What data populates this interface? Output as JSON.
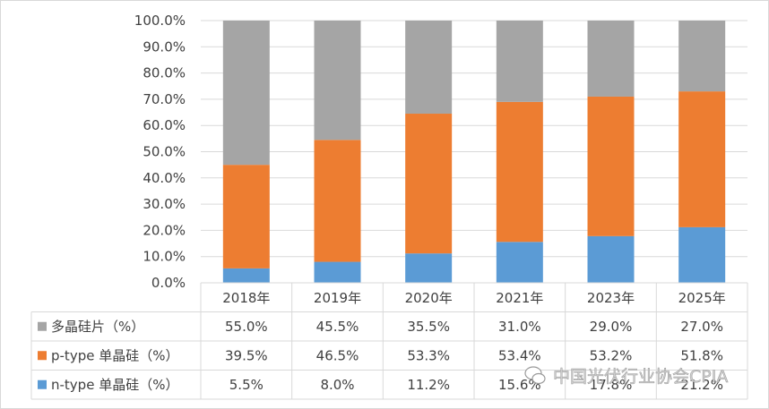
{
  "chart_data": {
    "type": "bar",
    "stacked": true,
    "categories": [
      "2018年",
      "2019年",
      "2020年",
      "2021年",
      "2023年",
      "2025年"
    ],
    "series": [
      {
        "name": "n-type 单晶硅（%）",
        "color": "#5b9bd5",
        "values": [
          5.5,
          8.0,
          11.2,
          15.6,
          17.8,
          21.2
        ],
        "labels": [
          "5.5%",
          "8.0%",
          "11.2%",
          "15.6%",
          "17.8%",
          "21.2%"
        ]
      },
      {
        "name": "p-type 单晶硅（%）",
        "color": "#ed7d31",
        "values": [
          39.5,
          46.5,
          53.3,
          53.4,
          53.2,
          51.8
        ],
        "labels": [
          "39.5%",
          "46.5%",
          "53.3%",
          "53.4%",
          "53.2%",
          "51.8%"
        ]
      },
      {
        "name": "多晶硅片（%）",
        "color": "#a5a5a5",
        "values": [
          55.0,
          45.5,
          35.5,
          31.0,
          29.0,
          27.0
        ],
        "labels": [
          "55.0%",
          "45.5%",
          "35.5%",
          "31.0%",
          "29.0%",
          "27.0%"
        ]
      }
    ],
    "ylim": [
      0,
      100
    ],
    "yticks": [
      "0.0%",
      "10.0%",
      "20.0%",
      "30.0%",
      "40.0%",
      "50.0%",
      "60.0%",
      "70.0%",
      "80.0%",
      "90.0%",
      "100.0%"
    ],
    "data_table": true,
    "table_row_order": [
      "多晶硅片（%）",
      "p-type 单晶硅（%）",
      "n-type 单晶硅（%）"
    ]
  },
  "watermark": "中国光伏行业协会CPIA",
  "watermark_icon": "wechat-icon"
}
